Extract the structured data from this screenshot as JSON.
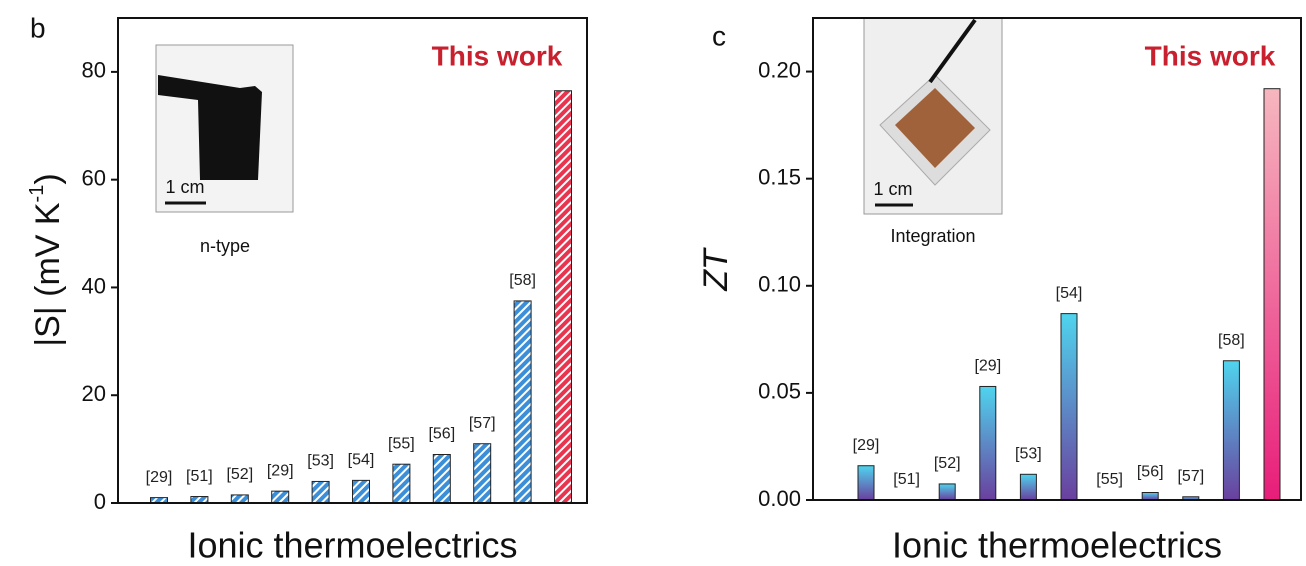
{
  "chart_data": [
    {
      "type": "bar",
      "panel_label": "b",
      "categories": [
        "[29]",
        "[51]",
        "[52]",
        "[29]",
        "[53]",
        "[54]",
        "[55]",
        "[56]",
        "[57]",
        "[58]",
        null
      ],
      "values": [
        1.0,
        1.2,
        1.5,
        2.2,
        4.0,
        4.2,
        7.2,
        9.0,
        11.0,
        37.5,
        76.5
      ],
      "colors": [
        "#3b8ed8",
        "#3b8ed8",
        "#3b8ed8",
        "#3b8ed8",
        "#3b8ed8",
        "#3b8ed8",
        "#3b8ed8",
        "#3b8ed8",
        "#3b8ed8",
        "#3b8ed8",
        "#e8344e"
      ],
      "hatch": true,
      "ylim": [
        0,
        90
      ],
      "yticks": [
        0,
        20,
        40,
        60,
        80
      ],
      "xlabel": "Ionic thermoelectrics",
      "ylabel": {
        "text": "|S| (mV K",
        "sup": "-1",
        "tail": ")"
      },
      "annotation": "This work",
      "inset": {
        "scale": "1 cm",
        "caption": "n-type"
      }
    },
    {
      "type": "bar",
      "panel_label": "c",
      "categories": [
        "[29]",
        "[51]",
        "[52]",
        "[29]",
        "[53]",
        "[54]",
        "[55]",
        "[56]",
        "[57]",
        "[58]",
        null
      ],
      "values": [
        0.016,
        0,
        0.0075,
        0.053,
        0.012,
        0.087,
        0,
        0.0035,
        0.0015,
        0.065,
        0.192
      ],
      "colors": [
        [
          "#4fd4ee",
          "#6a3f9e"
        ],
        [
          "#4fd4ee",
          "#6a3f9e"
        ],
        [
          "#4fd4ee",
          "#6a3f9e"
        ],
        [
          "#4fd4ee",
          "#6a3f9e"
        ],
        [
          "#4fd4ee",
          "#6a3f9e"
        ],
        [
          "#4fd4ee",
          "#6a3f9e"
        ],
        [
          "#4fd4ee",
          "#6a3f9e"
        ],
        [
          "#4fd4ee",
          "#6a3f9e"
        ],
        [
          "#4fd4ee",
          "#6a3f9e"
        ],
        [
          "#4fd4ee",
          "#6a3f9e"
        ],
        [
          "#f6b7bf",
          "#e81d7a"
        ]
      ],
      "hatch": false,
      "ylim": [
        0,
        0.225
      ],
      "yticks": [
        {
          "value": 0,
          "label": "0.00"
        },
        {
          "value": 0.05,
          "label": "0.05"
        },
        {
          "value": 0.1,
          "label": "0.10"
        },
        {
          "value": 0.15,
          "label": "0.15"
        },
        {
          "value": 0.2,
          "label": "0.20"
        }
      ],
      "xlabel": "Ionic thermoelectrics",
      "ylabel": {
        "text": "ZT"
      },
      "annotation": "This work",
      "inset": {
        "scale": "1 cm",
        "caption": "Integration"
      }
    }
  ]
}
